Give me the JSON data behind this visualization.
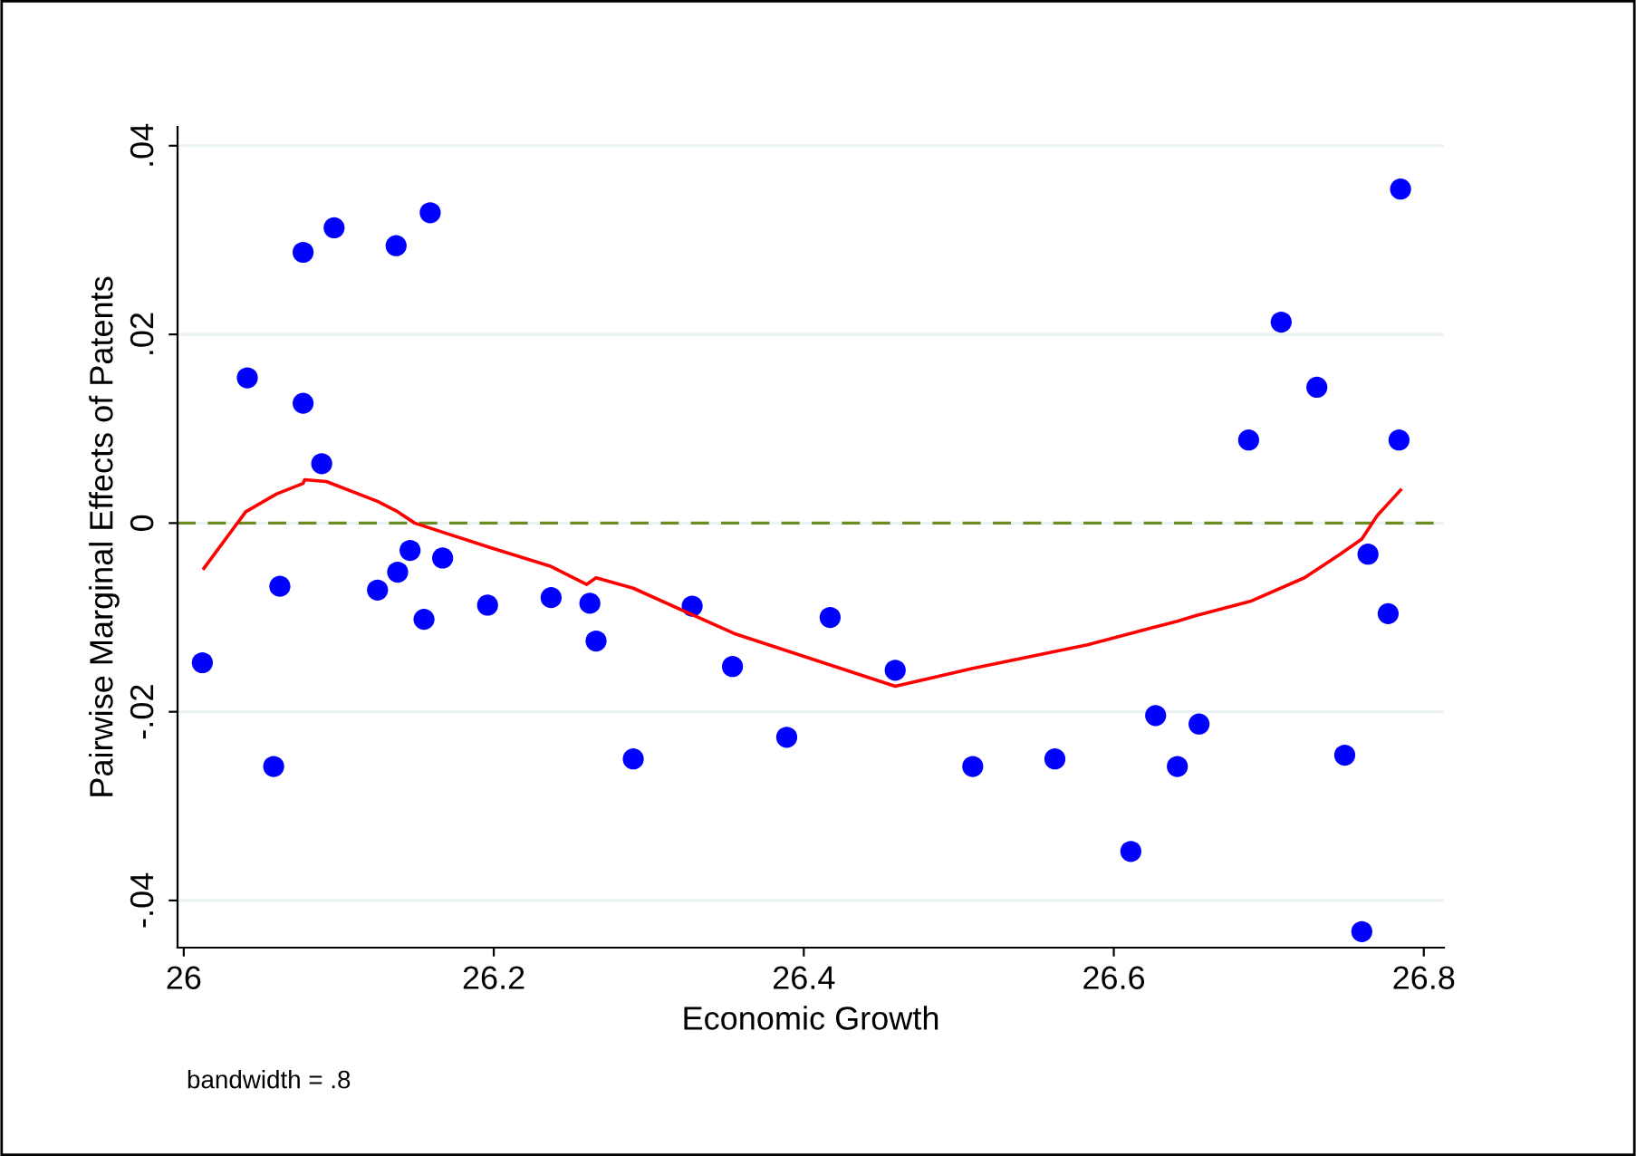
{
  "chart_data": {
    "type": "scatter",
    "xlabel": "Economic Growth",
    "ylabel": "Pairwise Marginal Effects of Patents",
    "annotations": [
      "bandwidth = .8"
    ],
    "xlim": [
      25.996,
      26.813
    ],
    "ylim": [
      -0.045,
      0.042
    ],
    "xticks": [
      26,
      26.2,
      26.4,
      26.6,
      26.8
    ],
    "yticks": [
      {
        "value": -0.04,
        "label": "-.04"
      },
      {
        "value": -0.02,
        "label": "-.02"
      },
      0,
      {
        "value": 0.02,
        "label": ".02"
      },
      {
        "value": 0.04,
        "label": ".04"
      }
    ],
    "grid": "y",
    "ref_lines": [
      {
        "axis": "y",
        "value": 0,
        "color": "#6b8e23",
        "line_style": "dashed"
      }
    ],
    "series": [
      {
        "color": "#0000ff",
        "marker": "circle",
        "x": [
          26.012,
          26.041,
          26.058,
          26.062,
          26.077,
          26.077,
          26.089,
          26.097,
          26.125,
          26.137,
          26.138,
          26.146,
          26.155,
          26.159,
          26.167,
          26.196,
          26.237,
          26.262,
          26.266,
          26.29,
          26.328,
          26.354,
          26.389,
          26.417,
          26.459,
          26.509,
          26.562,
          26.611,
          26.627,
          26.641,
          26.655,
          26.687,
          26.708,
          26.731,
          26.749,
          26.76,
          26.764,
          26.777,
          26.785,
          26.784
        ],
        "values": [
          -0.0148,
          0.0154,
          -0.0258,
          -0.0067,
          0.0287,
          0.0127,
          0.0063,
          0.0313,
          -0.0071,
          0.0294,
          -0.0052,
          -0.0029,
          -0.0102,
          0.0329,
          -0.0037,
          -0.0087,
          -0.0079,
          -0.0085,
          -0.0125,
          -0.025,
          -0.0088,
          -0.0152,
          -0.0227,
          -0.01,
          -0.0156,
          -0.0258,
          -0.025,
          -0.0348,
          -0.0204,
          -0.0258,
          -0.0213,
          0.0088,
          0.0213,
          0.0144,
          -0.0246,
          -0.0433,
          -0.0033,
          -0.0096,
          0.0354,
          0.0088
        ]
      },
      {
        "type": "line",
        "color": "#ff0000",
        "marker": "none",
        "line_style": "solid",
        "x": [
          26.013,
          26.04,
          26.06,
          26.077,
          26.078,
          26.092,
          26.125,
          26.137,
          26.149,
          26.196,
          26.237,
          26.26,
          26.266,
          26.29,
          26.355,
          26.459,
          26.509,
          26.583,
          26.641,
          26.653,
          26.688,
          26.723,
          26.746,
          26.76,
          26.77,
          26.785
        ],
        "values": [
          -0.0048,
          0.0012,
          0.0031,
          0.0042,
          0.0046,
          0.0044,
          0.0023,
          0.0013,
          0.0,
          -0.0025,
          -0.0046,
          -0.0065,
          -0.0058,
          -0.0069,
          -0.0117,
          -0.0173,
          -0.0154,
          -0.0129,
          -0.0104,
          -0.0098,
          -0.0083,
          -0.0058,
          -0.0033,
          -0.0017,
          0.0008,
          0.0035
        ]
      }
    ]
  }
}
